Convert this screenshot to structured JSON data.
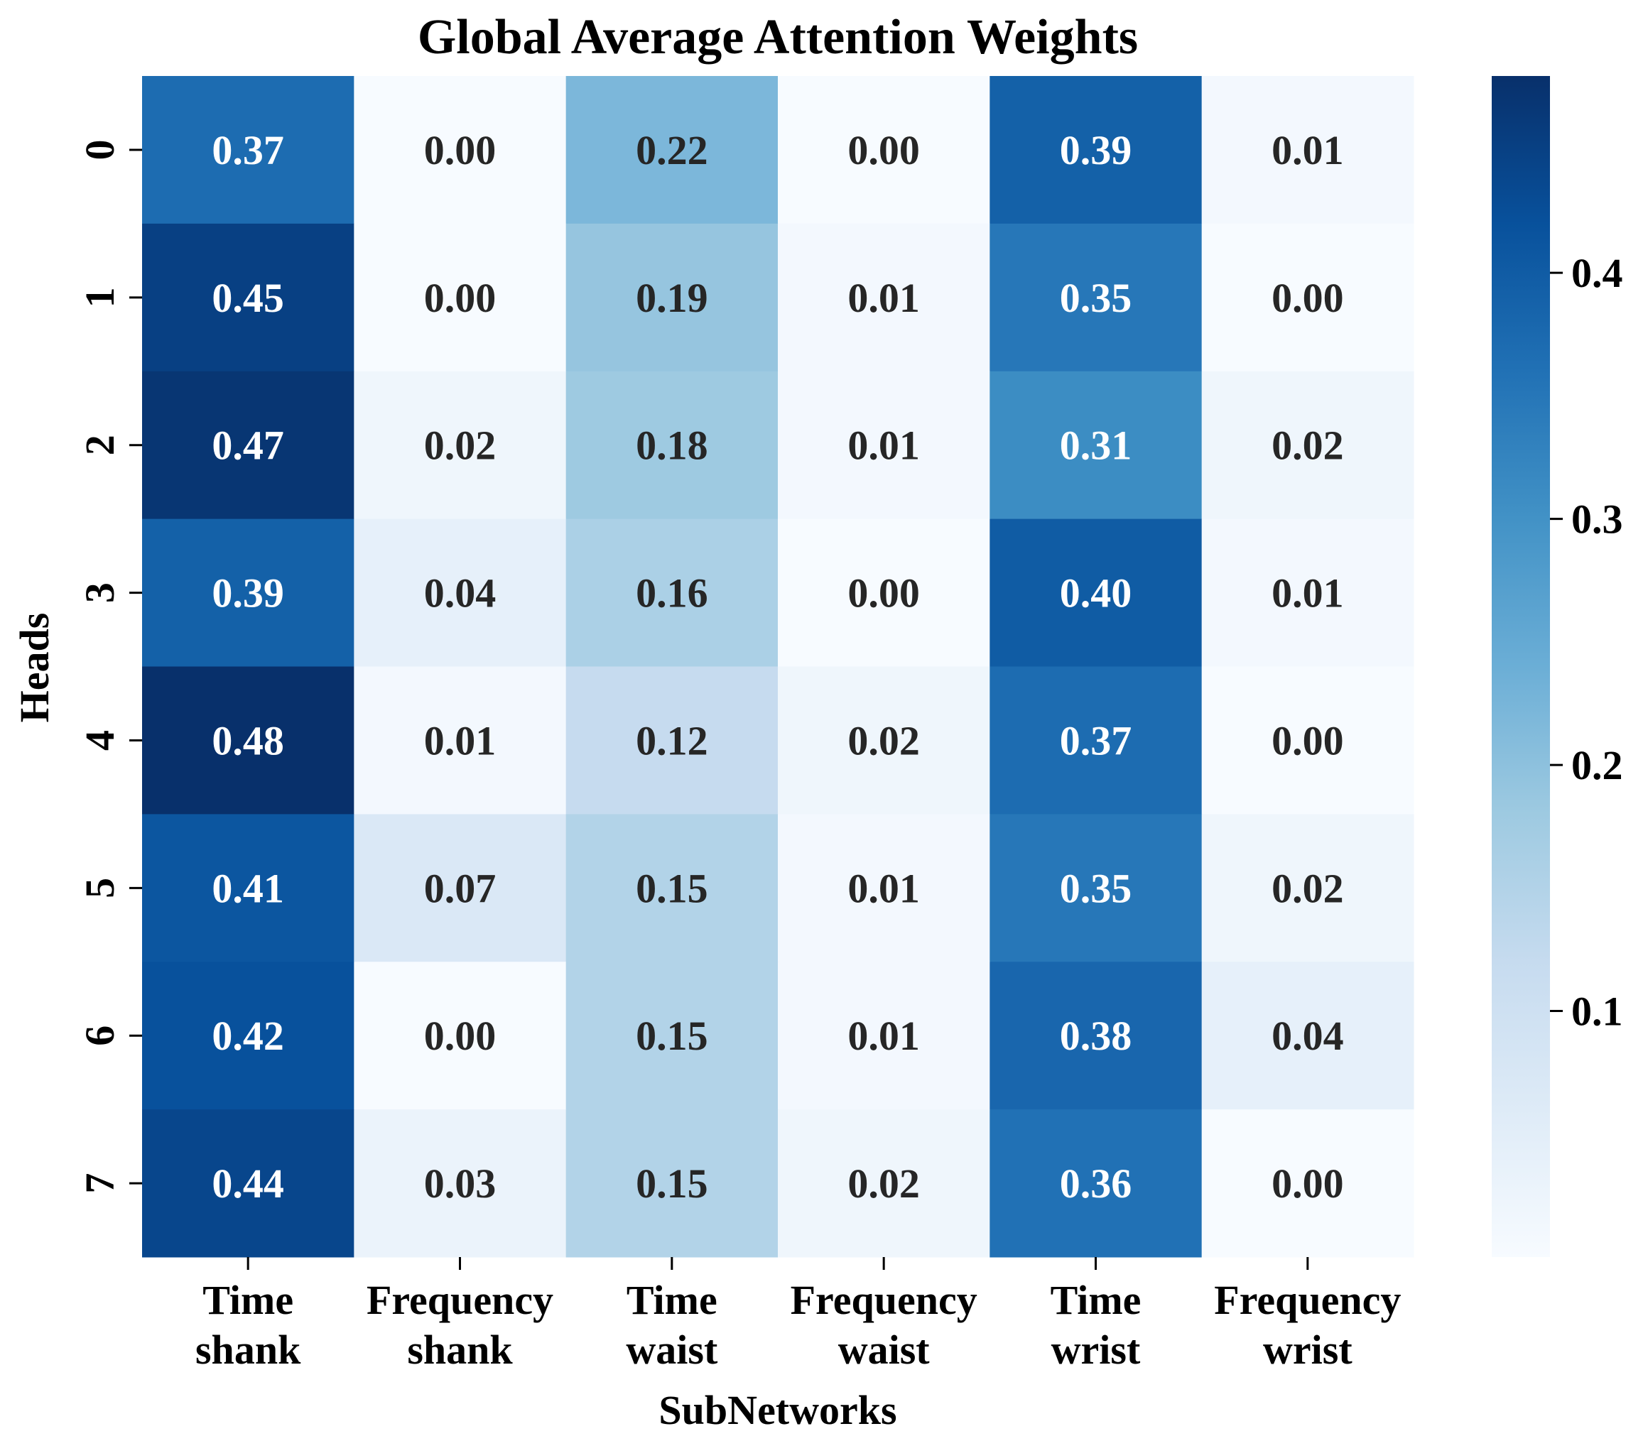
{
  "chart_data": {
    "type": "heatmap",
    "title": "Global Average Attention Weights",
    "xlabel": "SubNetworks",
    "ylabel": "Heads",
    "x_categories": [
      [
        "Time",
        "shank"
      ],
      [
        "Frequency",
        "shank"
      ],
      [
        "Time",
        "waist"
      ],
      [
        "Frequency",
        "waist"
      ],
      [
        "Time",
        "wrist"
      ],
      [
        "Frequency",
        "wrist"
      ]
    ],
    "y_categories": [
      "0",
      "1",
      "2",
      "3",
      "4",
      "5",
      "6",
      "7"
    ],
    "values": [
      [
        0.37,
        0.0,
        0.22,
        0.0,
        0.39,
        0.01
      ],
      [
        0.45,
        0.0,
        0.19,
        0.01,
        0.35,
        0.0
      ],
      [
        0.47,
        0.02,
        0.18,
        0.01,
        0.31,
        0.02
      ],
      [
        0.39,
        0.04,
        0.16,
        0.0,
        0.4,
        0.01
      ],
      [
        0.48,
        0.01,
        0.12,
        0.02,
        0.37,
        0.0
      ],
      [
        0.41,
        0.07,
        0.15,
        0.01,
        0.35,
        0.02
      ],
      [
        0.42,
        0.0,
        0.15,
        0.01,
        0.38,
        0.04
      ],
      [
        0.44,
        0.03,
        0.15,
        0.02,
        0.36,
        0.0
      ]
    ],
    "colormap": "Blues",
    "colorbar": {
      "range": [
        0.0,
        0.48
      ],
      "ticks": [
        0.1,
        0.2,
        0.3,
        0.4
      ],
      "tick_labels": [
        "0.1",
        "0.2",
        "0.3",
        "0.4"
      ]
    },
    "annotation_threshold": 0.24,
    "annotation_colors": {
      "light": "#ffffff",
      "dark": "#262626"
    }
  }
}
